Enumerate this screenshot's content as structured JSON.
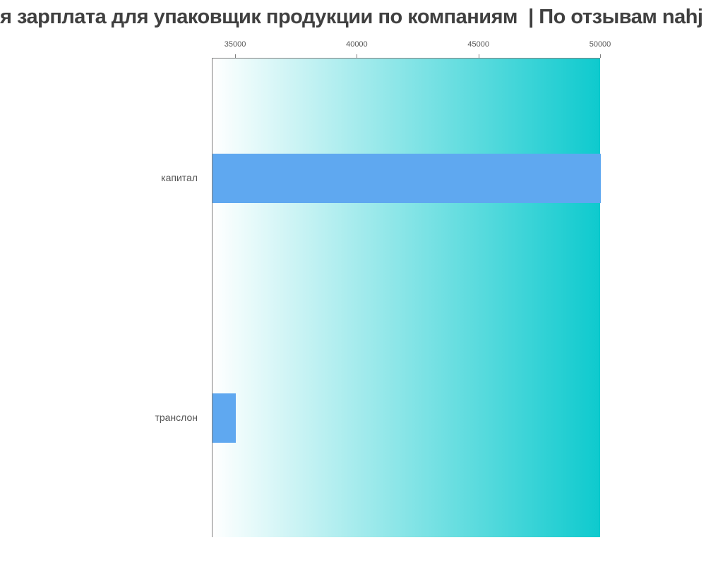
{
  "title": "я зарплата для упаковщик продукции по компаниям  | По отзывам nahj",
  "chart_data": {
    "type": "bar",
    "orientation": "horizontal",
    "title": "я зарплата для упаковщик продукции по компаниям  | По отзывам nahj",
    "categories": [
      "капитал",
      "транслон"
    ],
    "values": [
      50000,
      35000
    ],
    "x_axis_position": "top",
    "x_tick_labels": [
      "35000",
      "40000",
      "45000",
      "50000"
    ],
    "x_ticks": [
      35000,
      40000,
      45000,
      50000
    ],
    "xlim": [
      34040,
      50000
    ],
    "xlabel": "",
    "ylabel": "",
    "grid": false,
    "legend": false
  },
  "colors": {
    "bar": "#5fa8f0",
    "plot_gradient_start": "#ffffff",
    "plot_gradient_end": "#0ecace",
    "axis_border": "#808080",
    "tick_text": "#555555",
    "category_text": "#555555",
    "title_text": "#404040"
  }
}
